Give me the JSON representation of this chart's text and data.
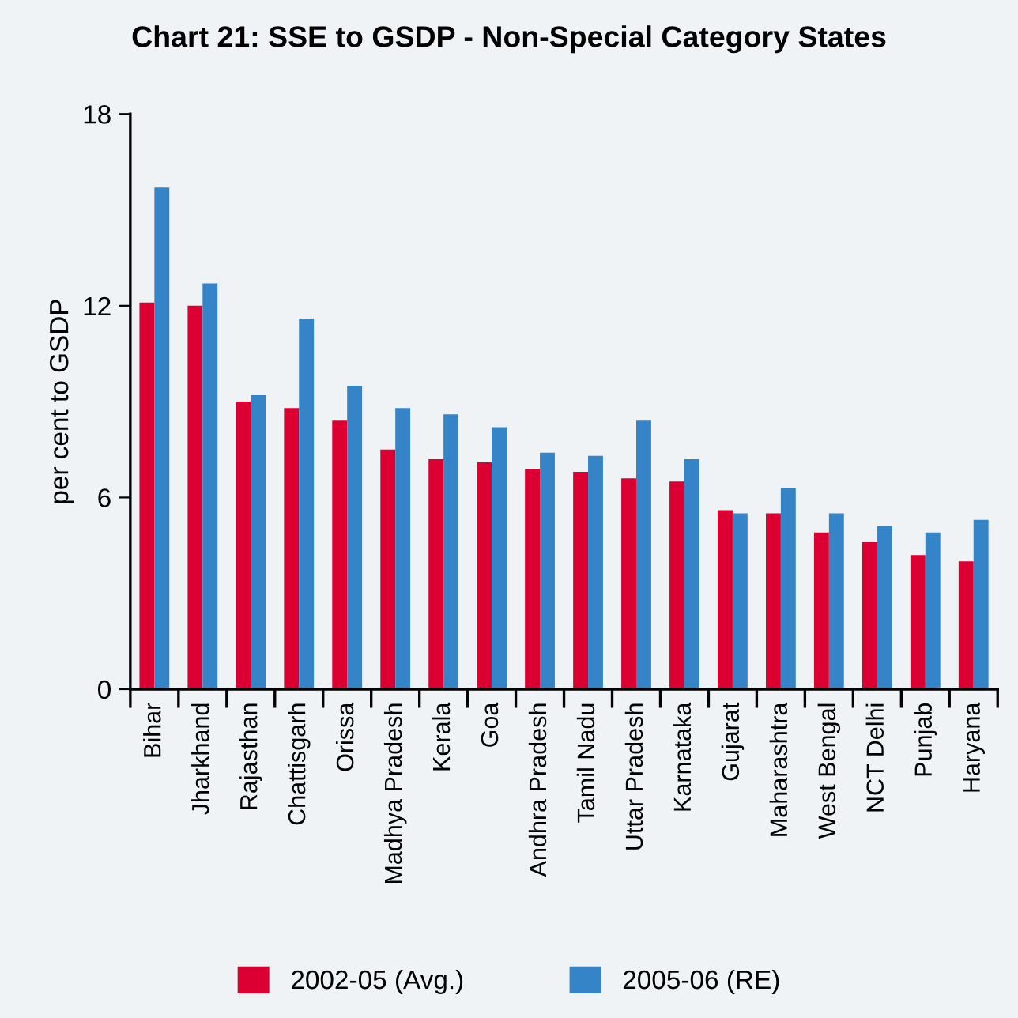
{
  "chart_data": {
    "type": "bar",
    "title": "Chart 21: SSE to GSDP - Non-Special Category States",
    "ylabel": "per cent to GSDP",
    "categories": [
      "Bihar",
      "Jharkhand",
      "Rajasthan",
      "Chattisgarh",
      "Orissa",
      "Madhya Pradesh",
      "Kerala",
      "Goa",
      "Andhra Pradesh",
      "Tamil Nadu",
      "Uttar Pradesh",
      "Karnataka",
      "Gujarat",
      "Maharashtra",
      "West Bengal",
      "NCT Delhi",
      "Punjab",
      "Haryana"
    ],
    "series": [
      {
        "name": "2002-05 (Avg.)",
        "color": "#dc0032",
        "values": [
          12.1,
          12.0,
          9.0,
          8.8,
          8.4,
          7.5,
          7.2,
          7.1,
          6.9,
          6.8,
          6.6,
          6.5,
          5.6,
          5.5,
          4.9,
          4.6,
          4.2,
          4.0
        ]
      },
      {
        "name": "2005-06 (RE)",
        "color": "#3584c8",
        "values": [
          15.7,
          12.7,
          9.2,
          11.6,
          9.5,
          8.8,
          8.6,
          8.2,
          7.4,
          7.3,
          8.4,
          7.2,
          5.5,
          6.3,
          5.5,
          5.1,
          4.9,
          5.3
        ]
      }
    ],
    "ylim": [
      0,
      18
    ],
    "yticks": [
      0,
      6,
      12,
      18
    ],
    "grid": false,
    "legend": "bottom"
  }
}
